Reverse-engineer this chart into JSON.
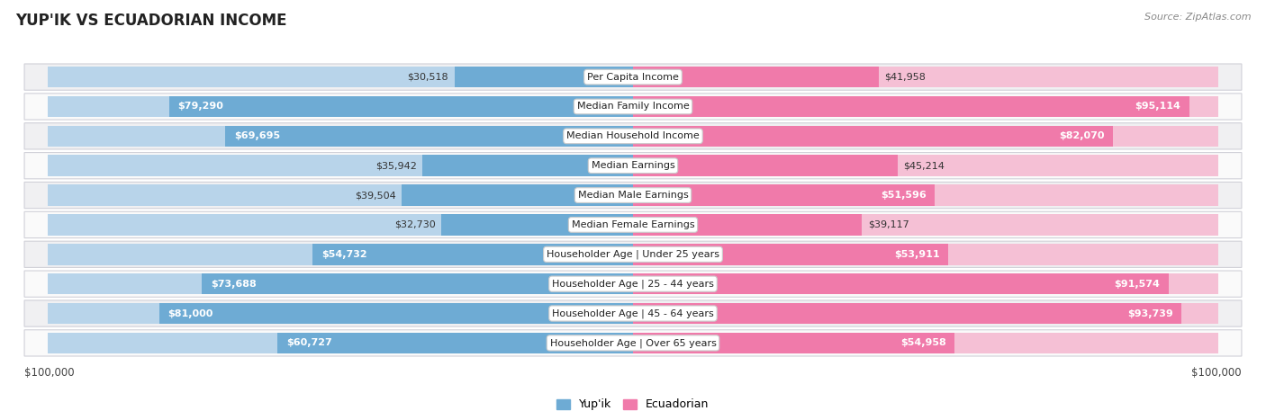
{
  "title": "YUP'IK VS ECUADORIAN INCOME",
  "source": "Source: ZipAtlas.com",
  "categories": [
    "Per Capita Income",
    "Median Family Income",
    "Median Household Income",
    "Median Earnings",
    "Median Male Earnings",
    "Median Female Earnings",
    "Householder Age | Under 25 years",
    "Householder Age | 25 - 44 years",
    "Householder Age | 45 - 64 years",
    "Householder Age | Over 65 years"
  ],
  "yupik_values": [
    30518,
    79290,
    69695,
    35942,
    39504,
    32730,
    54732,
    73688,
    81000,
    60727
  ],
  "ecuadorian_values": [
    41958,
    95114,
    82070,
    45214,
    51596,
    39117,
    53911,
    91574,
    93739,
    54958
  ],
  "yupik_labels": [
    "$30,518",
    "$79,290",
    "$69,695",
    "$35,942",
    "$39,504",
    "$32,730",
    "$54,732",
    "$73,688",
    "$81,000",
    "$60,727"
  ],
  "ecuadorian_labels": [
    "$41,958",
    "$95,114",
    "$82,070",
    "$45,214",
    "$51,596",
    "$39,117",
    "$53,911",
    "$91,574",
    "$93,739",
    "$54,958"
  ],
  "yupik_label_inside": [
    false,
    true,
    true,
    false,
    false,
    false,
    true,
    true,
    true,
    true
  ],
  "ecuadorian_label_inside": [
    false,
    true,
    true,
    false,
    true,
    false,
    true,
    true,
    true,
    true
  ],
  "max_value": 100000,
  "yupik_color": "#6eabd4",
  "yupik_color_light": "#b8d4ea",
  "ecuadorian_color": "#f07aaa",
  "ecuadorian_color_light": "#f5c0d5",
  "row_bg_odd": "#f0f0f2",
  "row_bg_even": "#fafafa",
  "label_fontsize": 8,
  "value_fontsize": 8,
  "title_fontsize": 12,
  "axis_label": "$100,000",
  "legend_yupik": "Yup'ik",
  "legend_ecuadorian": "Ecuadorian"
}
